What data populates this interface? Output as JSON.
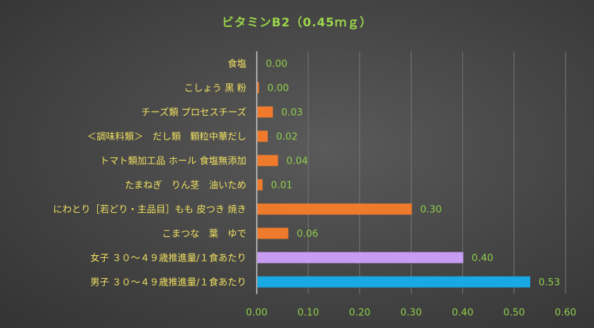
{
  "chart_data": {
    "type": "bar",
    "orientation": "horizontal",
    "title": "ビタミンB2（0.45ｍｇ）",
    "xlabel": "",
    "ylabel": "",
    "xlim": [
      0,
      0.6
    ],
    "x_ticks": [
      "0.00",
      "0.10",
      "0.20",
      "0.30",
      "0.40",
      "0.50",
      "0.60"
    ],
    "grid": true,
    "legend": "none",
    "categories": [
      "食塩",
      "こしょう 黒 粉",
      "チーズ類 プロセスチーズ",
      "＜調味料類＞　だし類　顆粒中華だし",
      "トマト類加工品 ホール 食塩無添加",
      "たまねぎ　りん茎　油いため",
      "にわとり［若どり・主品目］もも 皮つき 焼き",
      "こまつな　葉　ゆで",
      "女子 ３０～４９歳推進量/１食あたり",
      "男子 ３０～４９歳推進量/１食あたり"
    ],
    "values": [
      0.0,
      0.003,
      0.03,
      0.02,
      0.04,
      0.01,
      0.3,
      0.06,
      0.4,
      0.53
    ],
    "value_labels": [
      "0.00",
      "0.00",
      "0.03",
      "0.02",
      "0.04",
      "0.01",
      "0.30",
      "0.06",
      "0.40",
      "0.53"
    ],
    "bar_colors": [
      "#f07a2c",
      "#f07a2c",
      "#f07a2c",
      "#f07a2c",
      "#f07a2c",
      "#f07a2c",
      "#f07a2c",
      "#f07a2c",
      "#c89cf2",
      "#18a8e4"
    ],
    "colors": {
      "title": "#9bd54a",
      "category_labels": "#f0e060",
      "value_labels": "#8fcf4a",
      "tick_labels": "#8fcf4a",
      "grid": "#777777",
      "axis": "#d0d0d0"
    }
  }
}
